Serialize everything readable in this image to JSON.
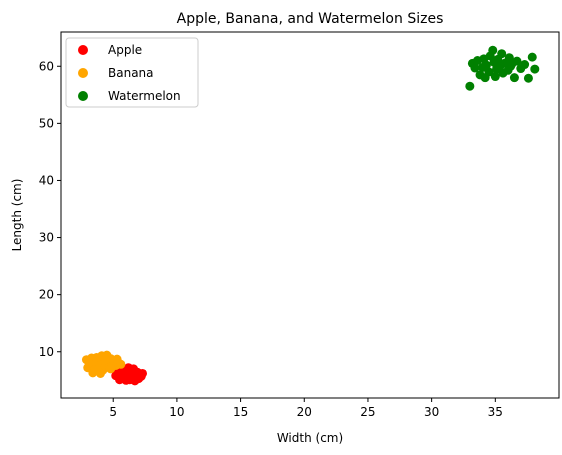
{
  "chart_data": {
    "type": "scatter",
    "title": "Apple, Banana, and Watermelon Sizes",
    "xlabel": "Width (cm)",
    "ylabel": "Length (cm)",
    "xlim": [
      0.9,
      40.0
    ],
    "ylim": [
      1.9,
      66.0
    ],
    "xticks": [
      5,
      10,
      15,
      20,
      25,
      30,
      35
    ],
    "yticks": [
      10,
      20,
      30,
      40,
      50,
      60
    ],
    "grid": false,
    "legend_position": "upper-left",
    "series": [
      {
        "name": "Apple",
        "color": "#ff0000",
        "points": [
          [
            5.2,
            5.8
          ],
          [
            5.4,
            6.2
          ],
          [
            5.6,
            5.5
          ],
          [
            5.8,
            6.0
          ],
          [
            6.0,
            6.5
          ],
          [
            6.1,
            5.2
          ],
          [
            6.2,
            5.9
          ],
          [
            6.3,
            6.8
          ],
          [
            6.4,
            6.3
          ],
          [
            6.5,
            5.6
          ],
          [
            6.6,
            6.1
          ],
          [
            6.7,
            4.9
          ],
          [
            6.8,
            5.8
          ],
          [
            6.9,
            6.4
          ],
          [
            7.0,
            5.3
          ],
          [
            7.1,
            6.0
          ],
          [
            7.2,
            5.7
          ],
          [
            7.3,
            6.2
          ],
          [
            5.5,
            5.1
          ],
          [
            5.9,
            6.9
          ],
          [
            6.2,
            7.2
          ],
          [
            6.6,
            7.0
          ],
          [
            5.7,
            5.4
          ],
          [
            6.0,
            5.0
          ],
          [
            6.4,
            5.4
          ],
          [
            6.9,
            5.5
          ],
          [
            5.3,
            6.6
          ],
          [
            6.1,
            6.3
          ],
          [
            6.3,
            5.1
          ],
          [
            6.5,
            6.9
          ]
        ]
      },
      {
        "name": "Banana",
        "color": "#ffa500",
        "points": [
          [
            2.9,
            8.6
          ],
          [
            3.0,
            7.2
          ],
          [
            3.2,
            7.8
          ],
          [
            3.3,
            8.9
          ],
          [
            3.4,
            6.3
          ],
          [
            3.5,
            7.5
          ],
          [
            3.6,
            8.2
          ],
          [
            3.7,
            9.0
          ],
          [
            3.8,
            7.0
          ],
          [
            3.9,
            8.5
          ],
          [
            4.0,
            7.7
          ],
          [
            4.1,
            9.3
          ],
          [
            4.2,
            6.8
          ],
          [
            4.3,
            8.0
          ],
          [
            4.4,
            7.4
          ],
          [
            4.5,
            9.4
          ],
          [
            4.6,
            8.3
          ],
          [
            4.7,
            7.2
          ],
          [
            4.8,
            8.8
          ],
          [
            4.9,
            7.9
          ],
          [
            5.0,
            8.4
          ],
          [
            5.2,
            7.6
          ],
          [
            5.4,
            8.1
          ],
          [
            5.6,
            7.8
          ],
          [
            3.6,
            6.6
          ],
          [
            4.0,
            6.2
          ],
          [
            4.4,
            8.6
          ],
          [
            3.1,
            8.0
          ],
          [
            4.8,
            7.0
          ],
          [
            5.3,
            8.7
          ]
        ]
      },
      {
        "name": "Watermelon",
        "color": "#008000",
        "points": [
          [
            33.0,
            56.5
          ],
          [
            33.2,
            60.5
          ],
          [
            33.6,
            61.0
          ],
          [
            33.8,
            58.5
          ],
          [
            34.0,
            59.8
          ],
          [
            34.1,
            61.3
          ],
          [
            34.3,
            60.2
          ],
          [
            34.5,
            59.0
          ],
          [
            34.6,
            61.8
          ],
          [
            34.8,
            62.8
          ],
          [
            34.9,
            60.7
          ],
          [
            35.0,
            58.2
          ],
          [
            35.1,
            59.5
          ],
          [
            35.2,
            61.2
          ],
          [
            35.4,
            60.1
          ],
          [
            35.5,
            62.2
          ],
          [
            35.6,
            58.8
          ],
          [
            35.8,
            60.6
          ],
          [
            36.0,
            59.3
          ],
          [
            36.1,
            61.5
          ],
          [
            36.3,
            60.4
          ],
          [
            36.5,
            58.0
          ],
          [
            36.7,
            60.9
          ],
          [
            37.0,
            59.6
          ],
          [
            37.3,
            60.3
          ],
          [
            37.6,
            57.9
          ],
          [
            37.9,
            61.6
          ],
          [
            38.1,
            59.5
          ],
          [
            34.2,
            58.0
          ],
          [
            35.3,
            60.0
          ],
          [
            36.2,
            60.0
          ],
          [
            33.4,
            59.7
          ]
        ]
      }
    ]
  }
}
